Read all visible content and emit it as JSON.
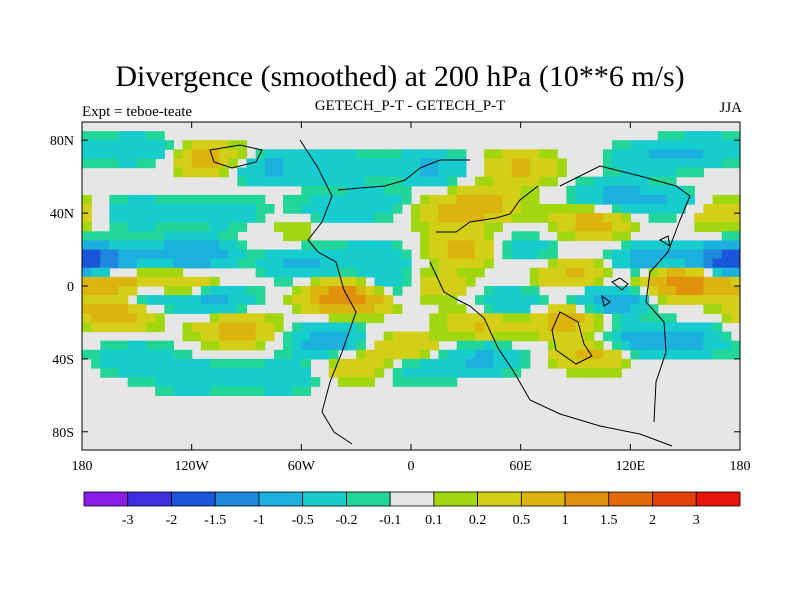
{
  "chart_data": {
    "type": "heatmap",
    "title": "Divergence (smoothed) at 200 hPa (10**6 m/s)",
    "subtitle_left": "Expt = teboe-teate",
    "subtitle_center": "GETECH_P-T - GETECH_P-T",
    "subtitle_right": "JJA",
    "x_axis": {
      "min": -180,
      "max": 180,
      "ticks": [
        {
          "value": -180,
          "label": "180"
        },
        {
          "value": -120,
          "label": "120W"
        },
        {
          "value": -60,
          "label": "60W"
        },
        {
          "value": 0,
          "label": "0"
        },
        {
          "value": 60,
          "label": "60E"
        },
        {
          "value": 120,
          "label": "120E"
        },
        {
          "value": 180,
          "label": "180"
        }
      ]
    },
    "y_axis": {
      "min": -90,
      "max": 90,
      "ticks": [
        {
          "value": 80,
          "label": "80N"
        },
        {
          "value": 40,
          "label": "40N"
        },
        {
          "value": 0,
          "label": "0"
        },
        {
          "value": -40,
          "label": "40S"
        },
        {
          "value": -80,
          "label": "80S"
        }
      ]
    },
    "colorbar": {
      "colors": [
        "#8a1de6",
        "#3d2ee0",
        "#1b55d8",
        "#1f88dd",
        "#1cb0dc",
        "#16cccc",
        "#22d69a",
        "#e6e6e6",
        "#a2d710",
        "#d3cf16",
        "#dcb40e",
        "#e0900a",
        "#e26a0a",
        "#e4400a",
        "#e6140a"
      ],
      "labels": [
        "-3",
        "-2",
        "-1.5",
        "-1",
        "-0.5",
        "-0.2",
        "-0.1",
        "0.1",
        "0.2",
        "0.5",
        "1",
        "1.5",
        "2",
        "3"
      ]
    },
    "fields": [
      {
        "lon": -170,
        "lat": 14,
        "value": -1.2
      },
      {
        "lon": -120,
        "lat": 18,
        "value": -1.0
      },
      {
        "lon": -60,
        "lat": 12,
        "value": -0.6
      },
      {
        "lon": -20,
        "lat": 16,
        "value": -0.5
      },
      {
        "lon": 170,
        "lat": 14,
        "value": -1.4
      },
      {
        "lon": 130,
        "lat": 14,
        "value": -0.7
      },
      {
        "lon": -165,
        "lat": 2,
        "value": 1.0
      },
      {
        "lon": -120,
        "lat": 0,
        "value": 0.8
      },
      {
        "lon": 150,
        "lat": 2,
        "value": 1.6
      },
      {
        "lon": 90,
        "lat": 6,
        "value": 0.6
      },
      {
        "lon": -150,
        "lat": -8,
        "value": -0.8
      },
      {
        "lon": -110,
        "lat": -6,
        "value": -0.9
      },
      {
        "lon": -160,
        "lat": -14,
        "value": 1.2
      },
      {
        "lon": -95,
        "lat": -24,
        "value": 0.7
      },
      {
        "lon": -35,
        "lat": -6,
        "value": 1.5
      },
      {
        "lon": -45,
        "lat": -30,
        "value": -0.8
      },
      {
        "lon": -10,
        "lat": 0,
        "value": -0.7
      },
      {
        "lon": 10,
        "lat": 0,
        "value": 0.6
      },
      {
        "lon": 30,
        "lat": 20,
        "value": 0.7
      },
      {
        "lon": 40,
        "lat": -20,
        "value": 0.6
      },
      {
        "lon": 55,
        "lat": -10,
        "value": -0.6
      },
      {
        "lon": 85,
        "lat": -18,
        "value": 0.8
      },
      {
        "lon": 110,
        "lat": -8,
        "value": -0.9
      },
      {
        "lon": 150,
        "lat": -30,
        "value": -0.7
      },
      {
        "lon": 0,
        "lat": -45,
        "value": -0.5
      },
      {
        "lon": 40,
        "lat": -40,
        "value": -0.6
      },
      {
        "lon": 120,
        "lat": -30,
        "value": -0.6
      },
      {
        "lon": 100,
        "lat": -38,
        "value": 0.7
      },
      {
        "lon": -30,
        "lat": -45,
        "value": 0.5
      },
      {
        "lon": -5,
        "lat": -35,
        "value": 0.6
      },
      {
        "lon": -150,
        "lat": -40,
        "value": -0.5
      },
      {
        "lon": -120,
        "lat": -50,
        "value": -0.5
      },
      {
        "lon": -70,
        "lat": -50,
        "value": -0.5
      },
      {
        "lon": 20,
        "lat": 40,
        "value": 0.5
      },
      {
        "lon": -50,
        "lat": 40,
        "value": -0.5
      },
      {
        "lon": -20,
        "lat": 45,
        "value": -0.4
      },
      {
        "lon": 40,
        "lat": 45,
        "value": 0.6
      },
      {
        "lon": 100,
        "lat": 35,
        "value": 0.7
      },
      {
        "lon": 110,
        "lat": 50,
        "value": -0.6
      },
      {
        "lon": 140,
        "lat": 45,
        "value": -0.5
      },
      {
        "lon": 170,
        "lat": 40,
        "value": 0.5
      },
      {
        "lon": -150,
        "lat": 40,
        "value": -0.5
      },
      {
        "lon": -100,
        "lat": 40,
        "value": -0.4
      },
      {
        "lon": -80,
        "lat": 65,
        "value": -0.6
      },
      {
        "lon": -40,
        "lat": 65,
        "value": -0.5
      },
      {
        "lon": 10,
        "lat": 65,
        "value": -0.6
      },
      {
        "lon": 60,
        "lat": 65,
        "value": 0.6
      },
      {
        "lon": 130,
        "lat": 70,
        "value": -0.5
      },
      {
        "lon": -110,
        "lat": 70,
        "value": 0.7
      },
      {
        "lon": -150,
        "lat": 75,
        "value": -0.5
      },
      {
        "lon": 160,
        "lat": 75,
        "value": -0.5
      },
      {
        "lon": -60,
        "lat": 35,
        "value": 0.4
      },
      {
        "lon": 60,
        "lat": 20,
        "value": -0.4
      }
    ]
  }
}
